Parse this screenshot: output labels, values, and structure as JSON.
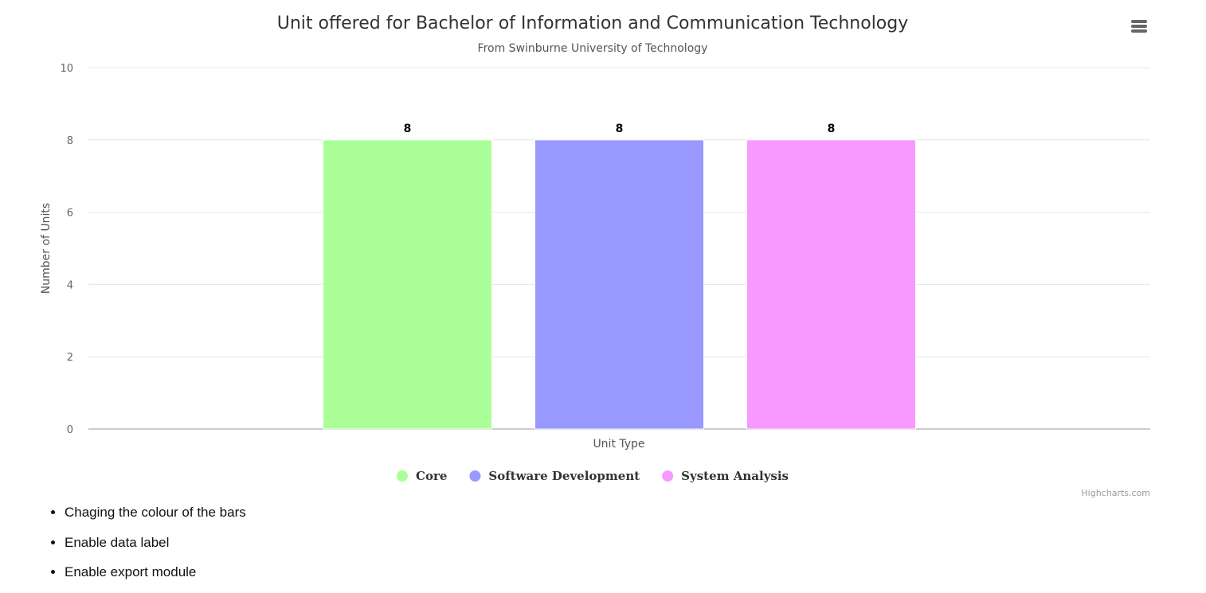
{
  "chart_data": {
    "type": "bar",
    "title": "Unit offered for Bachelor of Information and Communication Technology",
    "subtitle": "From Swinburne University of Technology",
    "xlabel": "Unit Type",
    "ylabel": "Number of Units",
    "ylim": [
      0,
      10
    ],
    "yticks": [
      "0",
      "2",
      "4",
      "6",
      "8",
      "10"
    ],
    "grid": true,
    "legend_position": "bottom-center",
    "data_labels": true,
    "series": [
      {
        "name": "Core",
        "values": [
          8
        ],
        "color": "#aaff99"
      },
      {
        "name": "Software Development",
        "values": [
          8
        ],
        "color": "#9999ff"
      },
      {
        "name": "System Analysis",
        "values": [
          8
        ],
        "color": "#f799ff"
      }
    ]
  },
  "credits": "Highcharts.com",
  "export_menu_icon": "hamburger-menu-icon",
  "notes": [
    "Chaging the colour of the bars",
    "Enable data label",
    "Enable export module"
  ]
}
